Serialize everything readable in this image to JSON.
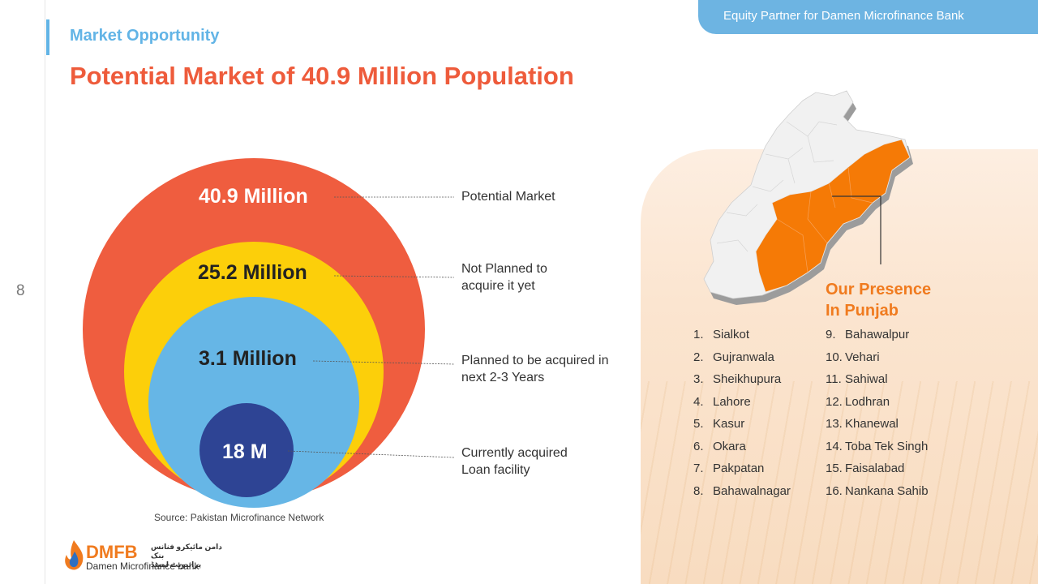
{
  "header": {
    "banner": "Equity Partner for Damen Microfinance Bank",
    "section_label": "Market Opportunity",
    "title": "Potential Market of 40.9 Million Population",
    "page_number": "8"
  },
  "market": {
    "circles": [
      {
        "value": "40.9 Million",
        "description": "Potential Market",
        "color": "#ef5d3f"
      },
      {
        "value": "25.2 Million",
        "description": "Not Planned to acquire it yet",
        "color": "#fccf0a"
      },
      {
        "value": "3.1 Million",
        "description": "Planned to be acquired in next 2-3 Years",
        "color": "#66b6e6"
      },
      {
        "value": "18 M",
        "description": "Currently acquired Loan facility",
        "color": "#2e4494"
      }
    ],
    "source": "Source: Pakistan Microfinance Network"
  },
  "presence": {
    "title_line1": "Our Presence",
    "title_line2": "In Punjab",
    "cities_left": [
      "Sialkot",
      "Gujranwala",
      "Sheikhupura",
      "Lahore",
      "Kasur",
      "Okara",
      "Pakpatan",
      "Bahawalnagar"
    ],
    "cities_right": [
      "Bahawalpur",
      "Vehari",
      "Sahiwal",
      "Lodhran",
      "Khanewal",
      "Toba Tek Singh",
      "Faisalabad",
      "Nankana Sahib"
    ],
    "numbers_left": [
      "1.",
      "2.",
      "3.",
      "4.",
      "5.",
      "6.",
      "7.",
      "8."
    ],
    "numbers_right": [
      "9.",
      "10.",
      "11.",
      "12.",
      "13.",
      "14.",
      "15.",
      "16."
    ]
  },
  "logo": {
    "abbr": "DMFB",
    "name": "Damen Microfinance bank",
    "urdu_line1": "دامن مائیکرو فنانس بنک",
    "urdu_line2": "پرائیویٹ لمیٹڈ"
  }
}
